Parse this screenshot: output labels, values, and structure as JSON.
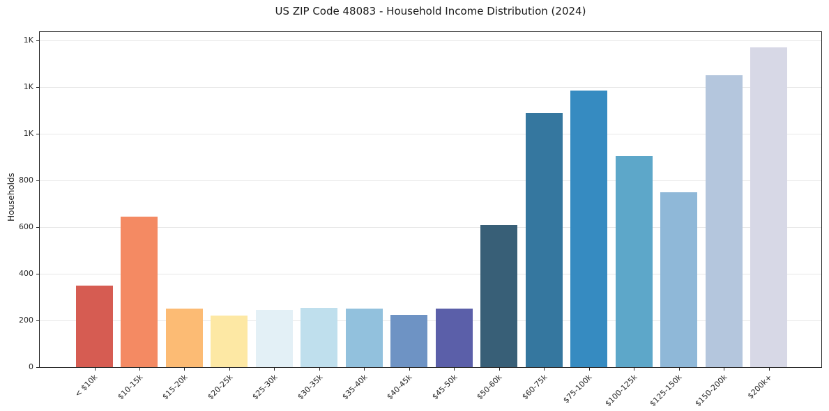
{
  "chart_data": {
    "type": "bar",
    "title": "US ZIP Code 48083 - Household Income Distribution (2024)",
    "xlabel": "",
    "ylabel": "Households",
    "categories": [
      "< $10k",
      "$10-15k",
      "$15-20k",
      "$20-25k",
      "$25-30k",
      "$30-35k",
      "$35-40k",
      "$40-45k",
      "$45-50k",
      "$50-60k",
      "$60-75k",
      "$75-100k",
      "$100-125k",
      "$125-150k",
      "$150-200k",
      "$200k+"
    ],
    "values": [
      350,
      645,
      250,
      220,
      245,
      255,
      250,
      225,
      250,
      610,
      1090,
      1185,
      905,
      750,
      1250,
      1370
    ],
    "bar_colors": [
      "#d65c52",
      "#f48a63",
      "#fcbb74",
      "#fde8a4",
      "#e3f0f6",
      "#bfdfed",
      "#92c1dd",
      "#6e93c4",
      "#5b5fa9",
      "#385f77",
      "#35779f",
      "#368bc1",
      "#5da7c9",
      "#8fb8d8",
      "#b4c6dd",
      "#d7d8e6"
    ],
    "yticks": [
      {
        "value": 0,
        "label": "0"
      },
      {
        "value": 200,
        "label": "200"
      },
      {
        "value": 400,
        "label": "400"
      },
      {
        "value": 600,
        "label": "600"
      },
      {
        "value": 800,
        "label": "800"
      },
      {
        "value": 1000,
        "label": "1K"
      },
      {
        "value": 1200,
        "label": "1K"
      },
      {
        "value": 1400,
        "label": "1K"
      }
    ],
    "ylim": [
      0,
      1436
    ],
    "grid": true,
    "legend_position": "none",
    "colors": {
      "background": "#ffffff",
      "spine": "#222222",
      "gridline": "#e7e7e7",
      "tick_text": "#262626",
      "title_text": "#1a1a1a"
    }
  }
}
